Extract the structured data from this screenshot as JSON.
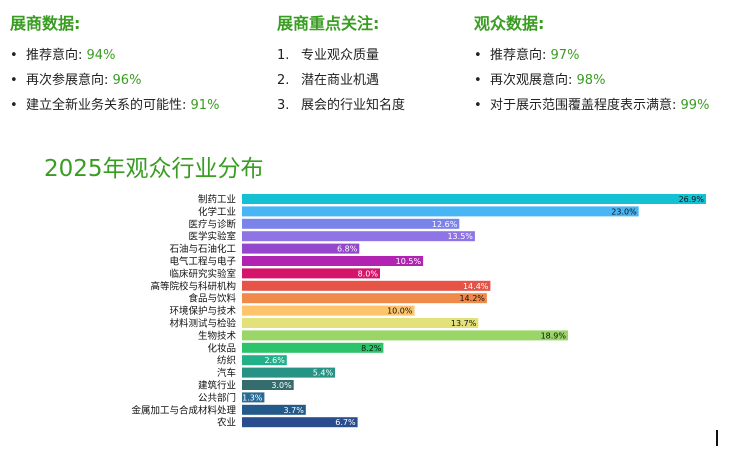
{
  "exhibitor": {
    "title": "展商数据:",
    "items": [
      {
        "label": "推荐意向:",
        "value": "94%"
      },
      {
        "label": "再次参展意向:",
        "value": "96%"
      },
      {
        "label": "建立全新业务关系的可能性:",
        "value": "91%"
      }
    ]
  },
  "focus": {
    "title": "展商重点关注:",
    "items": [
      {
        "num": "1.",
        "label": "专业观众质量"
      },
      {
        "num": "2.",
        "label": "潜在商业机遇"
      },
      {
        "num": "3.",
        "label": "展会的行业知名度"
      }
    ]
  },
  "visitor": {
    "title": "观众数据:",
    "items": [
      {
        "label": "推荐意向:",
        "value": "97%"
      },
      {
        "label": "再次观展意向:",
        "value": "98%"
      },
      {
        "label": "对于展示范围覆盖程度表示满意:",
        "value": "99%"
      }
    ]
  },
  "chart_data": {
    "type": "bar",
    "orientation": "horizontal",
    "title": "2025年观众行业分布",
    "xlim": [
      0,
      26.9
    ],
    "grid": false,
    "legend": "none",
    "value_suffix": "%",
    "categories": [
      "制药工业",
      "化学工业",
      "医疗与诊断",
      "医学实验室",
      "石油与石油化工",
      "电气工程与电子",
      "临床研究实验室",
      "高等院校与科研机构",
      "食品与饮料",
      "环境保护与技术",
      "材料测试与检验",
      "生物技术",
      "化妆品",
      "纺织",
      "汽车",
      "建筑行业",
      "公共部门",
      "金属加工与合成材料处理",
      "农业"
    ],
    "values": [
      26.9,
      23.0,
      12.6,
      13.5,
      6.8,
      10.5,
      8.0,
      14.4,
      14.2,
      10.0,
      13.7,
      18.9,
      8.2,
      2.6,
      5.4,
      3.0,
      1.3,
      3.7,
      6.7
    ],
    "colors": [
      "#14c1d3",
      "#48b6f4",
      "#7b83ea",
      "#8e74e4",
      "#9446cc",
      "#b124b2",
      "#d6136a",
      "#e55447",
      "#f08a4a",
      "#fdc46c",
      "#e3e27a",
      "#9ad667",
      "#2cc36b",
      "#22b08a",
      "#269384",
      "#356c6e",
      "#2b6a94",
      "#235a8a",
      "#2a4d8e"
    ],
    "label_text_colors": [
      "#111111",
      "#111111",
      "#ffffff",
      "#ffffff",
      "#ffffff",
      "#ffffff",
      "#ffffff",
      "#ffffff",
      "#111111",
      "#111111",
      "#111111",
      "#111111",
      "#111111",
      "#ffffff",
      "#ffffff",
      "#ffffff",
      "#ffffff",
      "#ffffff",
      "#ffffff"
    ]
  }
}
